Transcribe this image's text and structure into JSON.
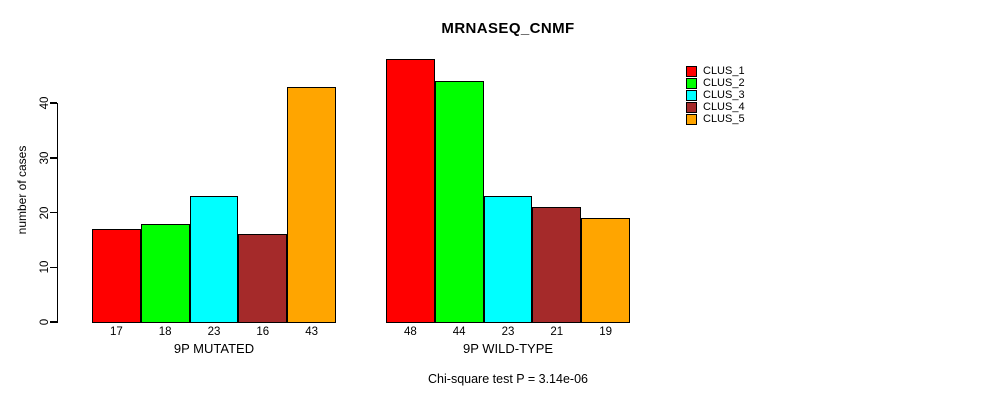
{
  "chart_data": {
    "type": "bar",
    "title": "MRNASEQ_CNMF",
    "ylabel": "number of cases",
    "yticks": [
      0,
      10,
      20,
      30,
      40
    ],
    "ylim": [
      0,
      48
    ],
    "grid": false,
    "legend_position": "right",
    "groups": [
      {
        "label": "9P MUTATED",
        "values": [
          17,
          18,
          23,
          16,
          43
        ]
      },
      {
        "label": "9P WILD-TYPE",
        "values": [
          48,
          44,
          23,
          21,
          19
        ]
      }
    ],
    "series": [
      {
        "name": "CLUS_1",
        "color": "#FF0000"
      },
      {
        "name": "CLUS_2",
        "color": "#00FF00"
      },
      {
        "name": "CLUS_3",
        "color": "#00FFFF"
      },
      {
        "name": "CLUS_4",
        "color": "#A52A2A"
      },
      {
        "name": "CLUS_5",
        "color": "#FFA500"
      }
    ],
    "bar_value_labels_shown": true,
    "annotation": "Chi-square test P = 3.14e-06"
  }
}
